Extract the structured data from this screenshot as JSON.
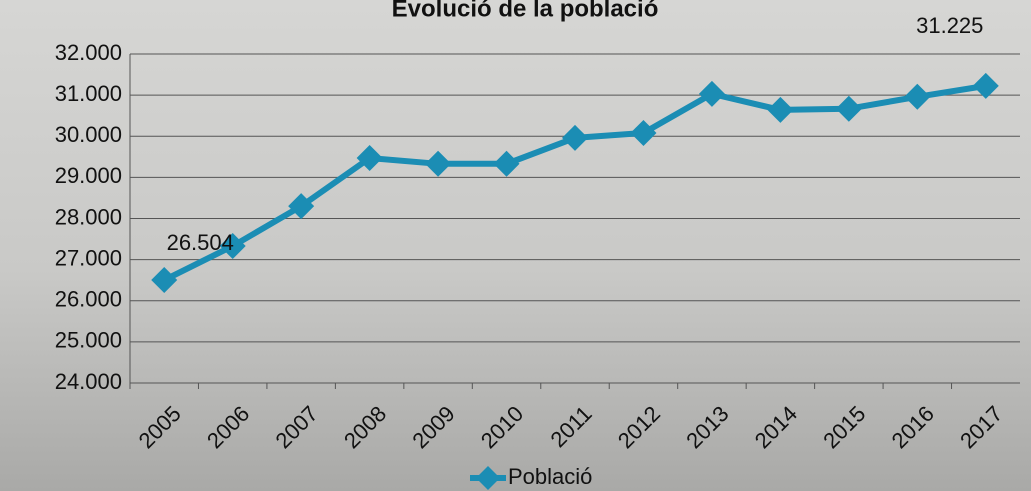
{
  "chart_data": {
    "type": "line",
    "title": "Evolució de la població",
    "categories": [
      "2005",
      "2006",
      "2007",
      "2008",
      "2009",
      "2010",
      "2011",
      "2012",
      "2013",
      "2014",
      "2015",
      "2016",
      "2017"
    ],
    "series": [
      {
        "name": "Població",
        "color": "#1b8db4",
        "values": [
          26504,
          27330,
          28300,
          29470,
          29330,
          29330,
          29960,
          30080,
          31030,
          30640,
          30670,
          30960,
          31225
        ],
        "value_labels": [
          "26.504",
          null,
          null,
          null,
          null,
          null,
          null,
          null,
          null,
          null,
          null,
          null,
          "31.225"
        ]
      }
    ],
    "ylim": [
      24000,
      32000
    ],
    "yticks": [
      {
        "value": 24000,
        "label": "24.000"
      },
      {
        "value": 25000,
        "label": "25.000"
      },
      {
        "value": 26000,
        "label": "26.000"
      },
      {
        "value": 27000,
        "label": "27.000"
      },
      {
        "value": 28000,
        "label": "28.000"
      },
      {
        "value": 29000,
        "label": "29.000"
      },
      {
        "value": 30000,
        "label": "30.000"
      },
      {
        "value": 31000,
        "label": "31.000"
      },
      {
        "value": 32000,
        "label": "32.000"
      }
    ],
    "grid": true,
    "legend": "bottom"
  }
}
